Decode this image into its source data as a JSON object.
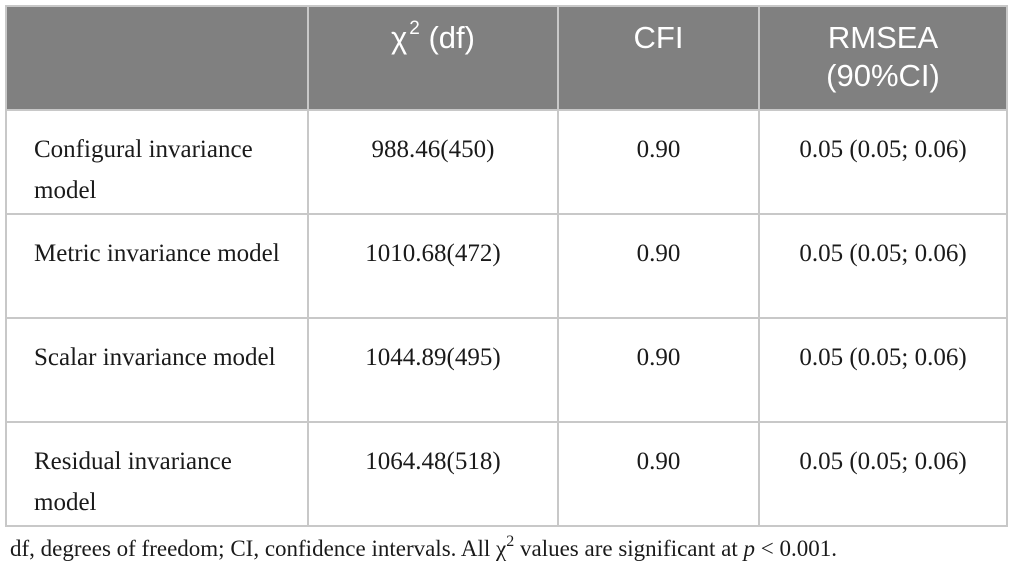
{
  "table": {
    "headers": {
      "col0": "",
      "chi_symbol": "χ",
      "chi_sup": "2",
      "chi_rest": " (df)",
      "cfi": "CFI",
      "rmsea_line1": "RMSEA",
      "rmsea_line2": "(90%CI)"
    },
    "rows": [
      {
        "model": "Configural invariance model",
        "chi": "988.46(450)",
        "cfi": "0.90",
        "rmsea": "0.05 (0.05; 0.06)"
      },
      {
        "model": "Metric invariance model",
        "chi": "1010.68(472)",
        "cfi": "0.90",
        "rmsea": "0.05 (0.05; 0.06)"
      },
      {
        "model": "Scalar invariance model",
        "chi": "1044.89(495)",
        "cfi": "0.90",
        "rmsea": "0.05 (0.05; 0.06)"
      },
      {
        "model": "Residual invariance model",
        "chi": "1064.48(518)",
        "cfi": "0.90",
        "rmsea": "0.05 (0.05; 0.06)"
      }
    ]
  },
  "footnote": {
    "part1": "df, degrees of freedom; CI, confidence intervals. All χ",
    "sup": "2",
    "part2": " values are significant at ",
    "p": "p",
    "part3": " < 0.001."
  },
  "colors": {
    "header_bg": "#808080",
    "header_text": "#ffffff",
    "border": "#c8c8c8"
  }
}
